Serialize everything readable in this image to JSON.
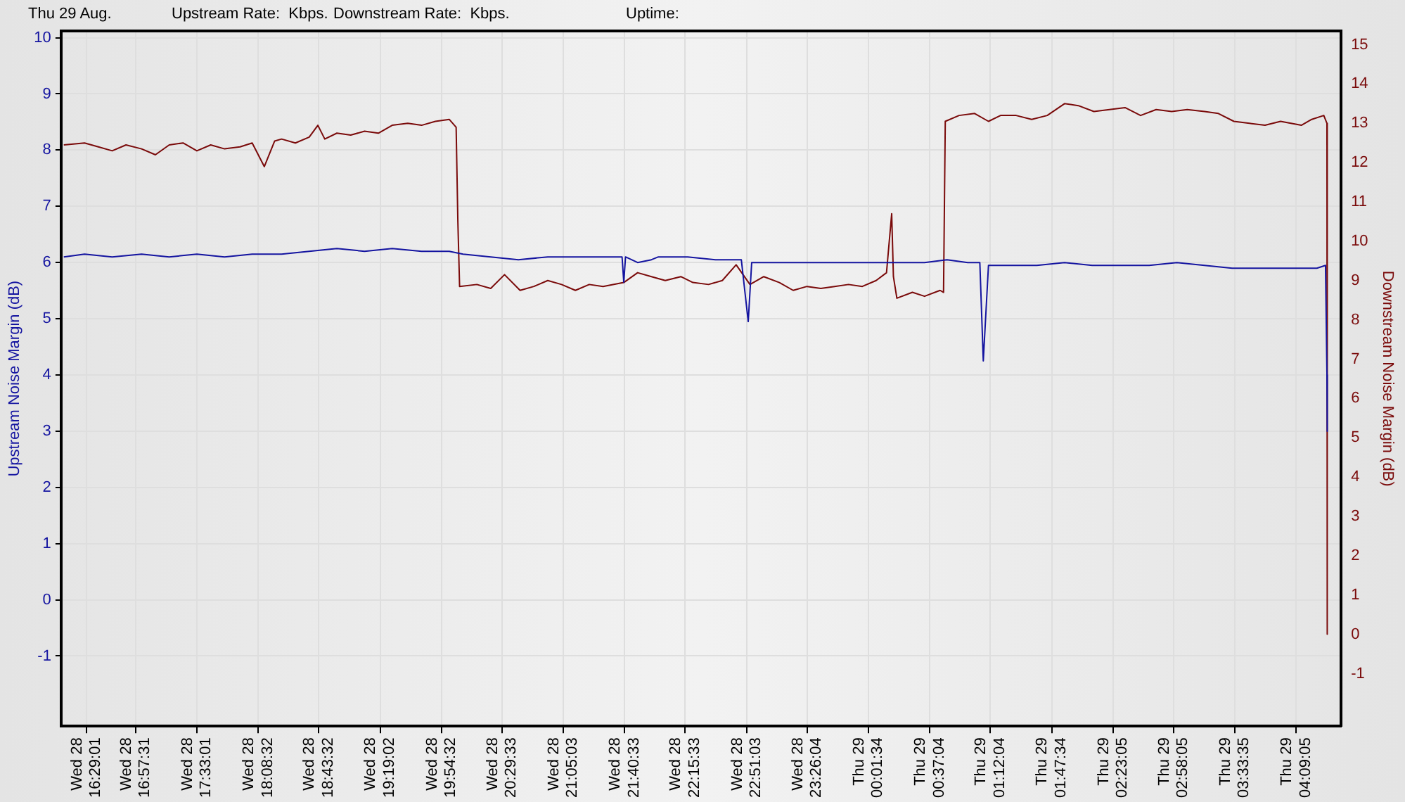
{
  "chart_data": {
    "type": "line",
    "ylabel": "Upstream Noise Margin (dB)",
    "y2label": "Downstream Noise Margin (dB)",
    "annotations": [
      "Thu 29 Aug.",
      "Upstream Rate:  Kbps.",
      "Downstream Rate:  Kbps.",
      "Uptime:"
    ],
    "xlim": [
      "--08-28T16:14:26",
      "--08-29T04:35:01"
    ],
    "xticks": [
      {
        "value": "--08-28T16:29:01",
        "label": "Wed 28\n16:29:01"
      },
      {
        "value": "--08-28T16:57:31",
        "label": "Wed 28\n16:57:31"
      },
      {
        "value": "--08-28T17:33:01",
        "label": "Wed 28\n17:33:01"
      },
      {
        "value": "--08-28T18:08:32",
        "label": "Wed 28\n18:08:32"
      },
      {
        "value": "--08-28T18:43:32",
        "label": "Wed 28\n18:43:32"
      },
      {
        "value": "--08-28T19:19:02",
        "label": "Wed 28\n19:19:02"
      },
      {
        "value": "--08-28T19:54:32",
        "label": "Wed 28\n19:54:32"
      },
      {
        "value": "--08-28T20:29:33",
        "label": "Wed 28\n20:29:33"
      },
      {
        "value": "--08-28T21:05:03",
        "label": "Wed 28\n21:05:03"
      },
      {
        "value": "--08-28T21:40:33",
        "label": "Wed 28\n21:40:33"
      },
      {
        "value": "--08-28T22:15:33",
        "label": "Wed 28\n22:15:33"
      },
      {
        "value": "--08-28T22:51:03",
        "label": "Wed 28\n22:51:03"
      },
      {
        "value": "--08-28T23:26:04",
        "label": "Wed 28\n23:26:04"
      },
      {
        "value": "--08-29T00:01:34",
        "label": "Thu 29\n00:01:34"
      },
      {
        "value": "--08-29T00:37:04",
        "label": "Thu 29\n00:37:04"
      },
      {
        "value": "--08-29T01:12:04",
        "label": "Thu 29\n01:12:04"
      },
      {
        "value": "--08-29T01:47:34",
        "label": "Thu 29\n01:47:34"
      },
      {
        "value": "--08-29T02:23:05",
        "label": "Thu 29\n02:23:05"
      },
      {
        "value": "--08-29T02:58:05",
        "label": "Thu 29\n02:58:05"
      },
      {
        "value": "--08-29T03:33:35",
        "label": "Thu 29\n03:33:35"
      },
      {
        "value": "--08-29T04:09:05",
        "label": "Thu 29\n04:09:05"
      }
    ],
    "ylim": [
      -2.25,
      10.12
    ],
    "yticks": [
      -1,
      0,
      1,
      2,
      3,
      4,
      5,
      6,
      7,
      8,
      9,
      10
    ],
    "y2lim": [
      -2.34,
      15.35
    ],
    "y2ticks": [
      -1,
      0,
      1,
      2,
      3,
      4,
      5,
      6,
      7,
      8,
      9,
      10,
      11,
      12,
      13,
      14,
      15
    ],
    "grid": true,
    "legend": false,
    "marker": "none",
    "line_style": "solid",
    "series": [
      {
        "color": "#1414a0",
        "x": [
          "--08-28T16:16",
          "--08-28T16:28",
          "--08-28T16:44",
          "--08-28T17:01",
          "--08-28T17:17",
          "--08-28T17:33",
          "--08-28T17:49",
          "--08-28T18:05",
          "--08-28T18:22",
          "--08-28T18:38",
          "--08-28T18:54",
          "--08-28T19:10",
          "--08-28T19:26",
          "--08-28T19:43",
          "--08-28T19:59",
          "--08-28T20:07",
          "--08-28T20:23",
          "--08-28T20:39",
          "--08-28T20:56",
          "--08-28T21:12",
          "--08-28T21:28",
          "--08-28T21:39",
          "--08-28T21:40",
          "--08-28T21:41",
          "--08-28T21:48",
          "--08-28T21:56",
          "--08-28T22:00",
          "--08-28T22:06",
          "--08-28T22:17",
          "--08-28T22:33",
          "--08-28T22:48",
          "--08-28T22:52",
          "--08-28T22:54",
          "--08-28T23:06",
          "--08-28T23:22",
          "--08-28T23:38",
          "--08-28T23:54",
          "--08-29T00:10",
          "--08-29T00:18",
          "--08-29T00:34",
          "--08-29T00:47",
          "--08-29T00:59",
          "--08-29T01:06",
          "--08-29T01:08",
          "--08-29T01:11",
          "--08-29T01:23",
          "--08-29T01:39",
          "--08-29T01:55",
          "--08-29T02:11",
          "--08-29T02:28",
          "--08-29T02:44",
          "--08-29T03:00",
          "--08-29T03:16",
          "--08-29T03:32",
          "--08-29T03:49",
          "--08-29T04:05",
          "--08-29T04:21",
          "--08-29T04:26",
          "--08-29T04:26:50",
          "--08-29T04:27:00"
        ],
        "values": [
          6.1,
          6.15,
          6.1,
          6.15,
          6.1,
          6.15,
          6.1,
          6.15,
          6.15,
          6.2,
          6.25,
          6.2,
          6.25,
          6.2,
          6.2,
          6.15,
          6.1,
          6.05,
          6.1,
          6.1,
          6.1,
          6.1,
          5.65,
          6.1,
          6.0,
          6.05,
          6.1,
          6.1,
          6.1,
          6.05,
          6.05,
          4.95,
          6.0,
          6.0,
          6.0,
          6.0,
          6.0,
          6.0,
          6.0,
          6.0,
          6.05,
          6.0,
          6.0,
          4.25,
          5.95,
          5.95,
          5.95,
          6.0,
          5.95,
          5.95,
          5.95,
          6.0,
          5.95,
          5.9,
          5.9,
          5.9,
          5.9,
          5.95,
          4.0,
          3.0
        ]
      },
      {
        "color": "#7a0a0a",
        "axis": "y2",
        "x": [
          "--08-28T16:16",
          "--08-28T16:28",
          "--08-28T16:36",
          "--08-28T16:44",
          "--08-28T16:52",
          "--08-28T17:01",
          "--08-28T17:09",
          "--08-28T17:17",
          "--08-28T17:25",
          "--08-28T17:33",
          "--08-28T17:41",
          "--08-28T17:49",
          "--08-28T17:58",
          "--08-28T18:05",
          "--08-28T18:12",
          "--08-28T18:18",
          "--08-28T18:22",
          "--08-28T18:30",
          "--08-28T18:38",
          "--08-28T18:43",
          "--08-28T18:47",
          "--08-28T18:54",
          "--08-28T19:02",
          "--08-28T19:10",
          "--08-28T19:18",
          "--08-28T19:26",
          "--08-28T19:35",
          "--08-28T19:43",
          "--08-28T19:51",
          "--08-28T19:59",
          "--08-28T20:03",
          "--08-28T20:04",
          "--08-28T20:05",
          "--08-28T20:15",
          "--08-28T20:23",
          "--08-28T20:31",
          "--08-28T20:40",
          "--08-28T20:48",
          "--08-28T20:56",
          "--08-28T21:04",
          "--08-28T21:12",
          "--08-28T21:20",
          "--08-28T21:28",
          "--08-28T21:40",
          "--08-28T21:48",
          "--08-28T21:56",
          "--08-28T22:04",
          "--08-28T22:13",
          "--08-28T22:20",
          "--08-28T22:29",
          "--08-28T22:37",
          "--08-28T22:45",
          "--08-28T22:53",
          "--08-28T23:01",
          "--08-28T23:10",
          "--08-28T23:18",
          "--08-28T23:26",
          "--08-28T23:34",
          "--08-28T23:42",
          "--08-28T23:50",
          "--08-28T23:58",
          "--08-29T00:06",
          "--08-29T00:12",
          "--08-29T00:15",
          "--08-29T00:16",
          "--08-29T00:18",
          "--08-29T00:27",
          "--08-29T00:34",
          "--08-29T00:43",
          "--08-29T00:45",
          "--08-29T00:46",
          "--08-29T00:54",
          "--08-29T01:03",
          "--08-29T01:11",
          "--08-29T01:18",
          "--08-29T01:27",
          "--08-29T01:36",
          "--08-29T01:45",
          "--08-29T01:55",
          "--08-29T02:03",
          "--08-29T02:12",
          "--08-29T02:21",
          "--08-29T02:30",
          "--08-29T02:39",
          "--08-29T02:48",
          "--08-29T02:57",
          "--08-29T03:06",
          "--08-29T03:16",
          "--08-29T03:24",
          "--08-29T03:33",
          "--08-29T03:42",
          "--08-29T03:51",
          "--08-29T04:00",
          "--08-29T04:06",
          "--08-29T04:12",
          "--08-29T04:18",
          "--08-29T04:25",
          "--08-29T04:26:50",
          "--08-29T04:27:00"
        ],
        "values": [
          12.45,
          12.5,
          12.4,
          12.3,
          12.45,
          12.35,
          12.2,
          12.45,
          12.5,
          12.3,
          12.45,
          12.35,
          12.4,
          12.5,
          11.9,
          12.55,
          12.6,
          12.5,
          12.65,
          12.95,
          12.6,
          12.75,
          12.7,
          12.8,
          12.75,
          12.95,
          13.0,
          12.95,
          13.05,
          13.1,
          12.9,
          10.5,
          8.85,
          8.9,
          8.8,
          9.15,
          8.75,
          8.85,
          9.0,
          8.9,
          8.75,
          8.9,
          8.85,
          8.95,
          9.2,
          9.1,
          9.0,
          9.1,
          8.95,
          8.9,
          9.0,
          9.4,
          8.9,
          9.1,
          8.95,
          8.75,
          8.85,
          8.8,
          8.85,
          8.9,
          8.85,
          9.0,
          9.2,
          10.7,
          9.1,
          8.55,
          8.7,
          8.6,
          8.75,
          8.7,
          13.05,
          13.2,
          13.25,
          13.05,
          13.2,
          13.2,
          13.1,
          13.2,
          13.5,
          13.45,
          13.3,
          13.35,
          13.4,
          13.2,
          13.35,
          13.3,
          13.35,
          13.3,
          13.25,
          13.05,
          13.0,
          12.95,
          13.05,
          13.0,
          12.95,
          13.1,
          13.2,
          13.0,
          0
        ]
      }
    ]
  }
}
